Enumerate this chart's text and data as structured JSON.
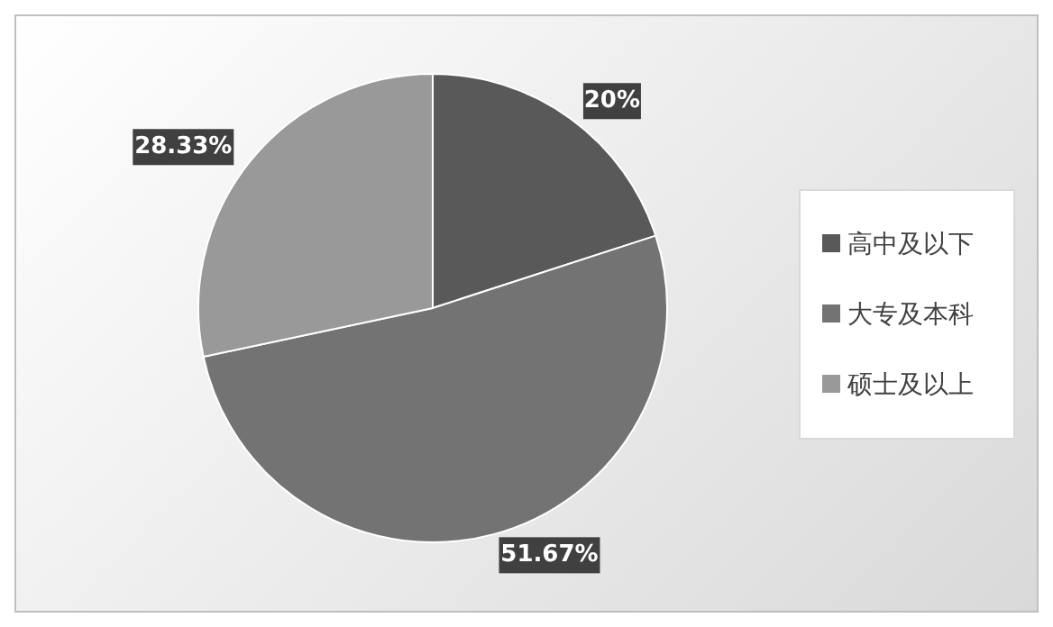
{
  "chart_data": {
    "type": "pie",
    "categories": [
      "高中及以下",
      "大专及本科",
      "硕士及以上"
    ],
    "values": [
      20,
      51.67,
      28.33
    ],
    "value_labels": [
      "20%",
      "51.67%",
      "28.33%"
    ],
    "colors": [
      "#595959",
      "#737373",
      "#999999"
    ],
    "legend": "right"
  }
}
